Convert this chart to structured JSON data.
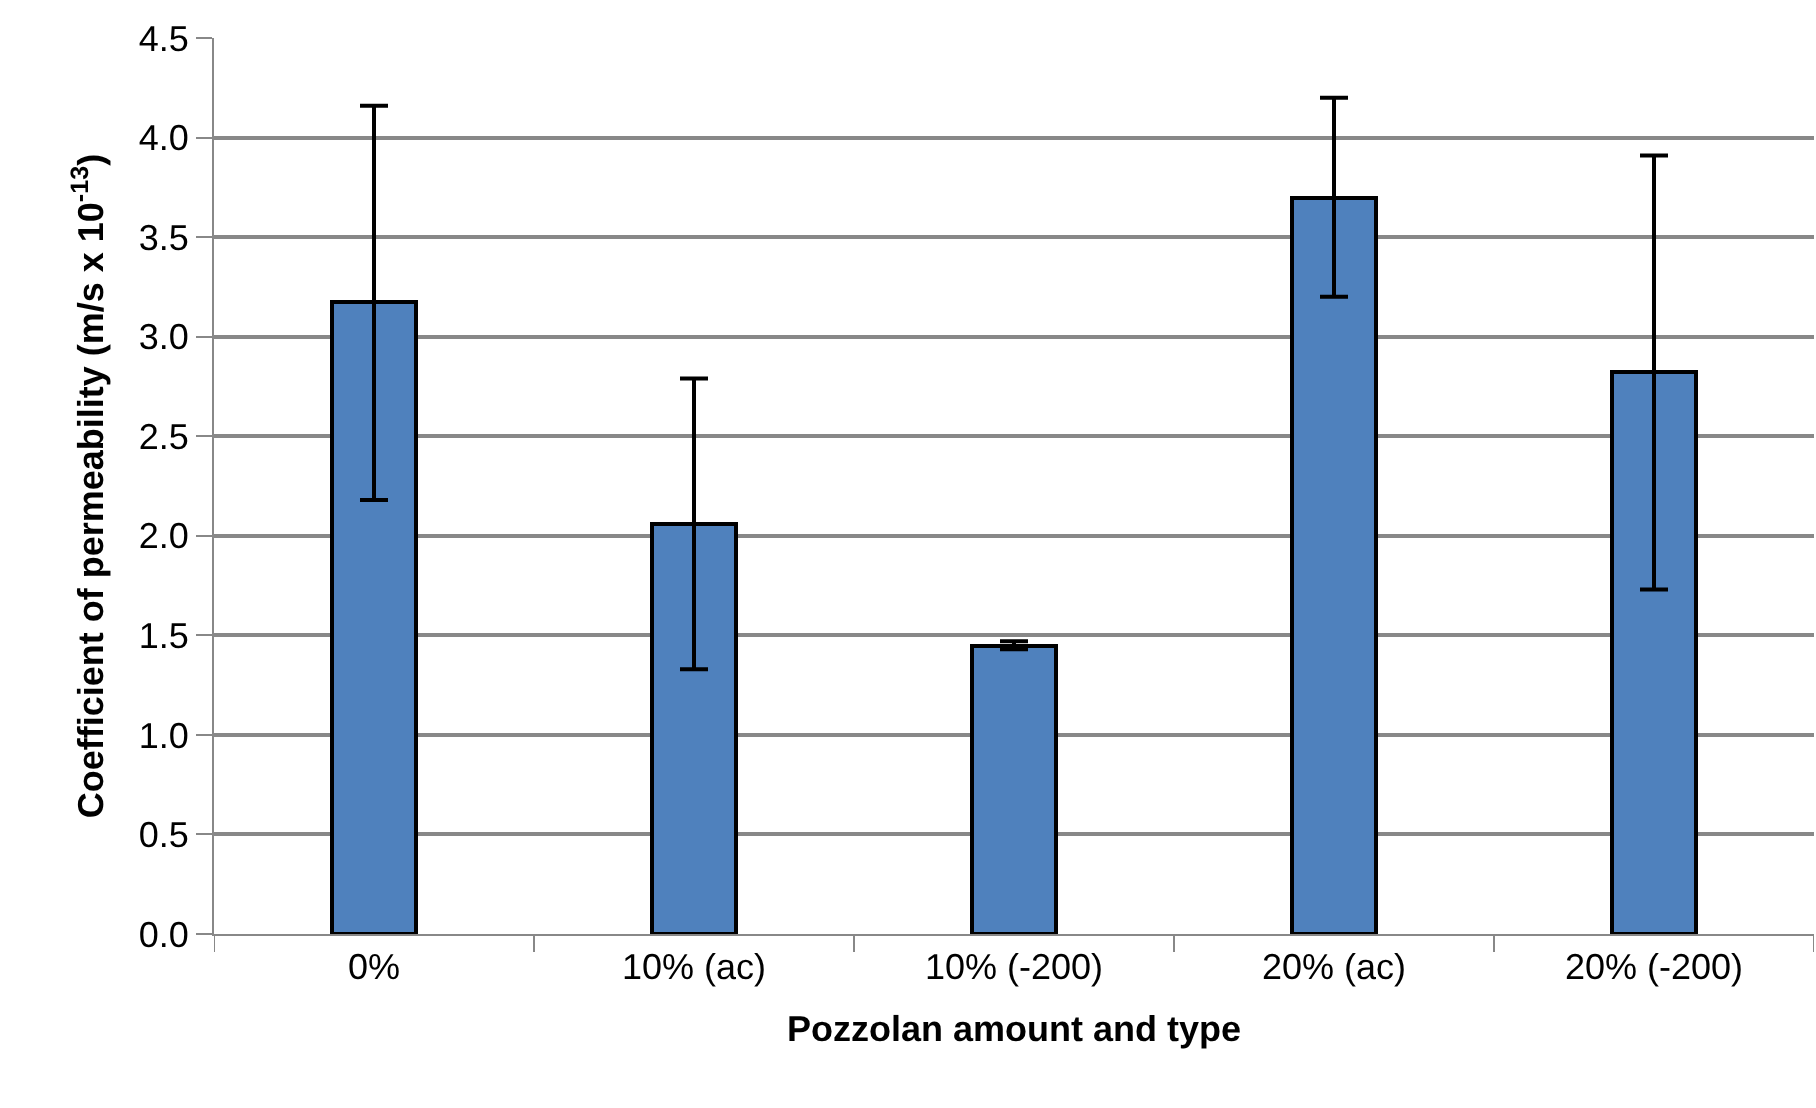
{
  "chart_data": {
    "type": "bar",
    "xlabel": "Pozzolan amount and type",
    "ylabel": "Coefficient of permeability (m/s x 10$^{-13}$)",
    "categories": [
      "0%",
      "10% (ac)",
      "10% (-200)",
      "20% (ac)",
      "20% (-200)"
    ],
    "values": [
      3.17,
      2.06,
      1.45,
      3.7,
      2.82
    ],
    "errors": [
      0.99,
      0.73,
      0.02,
      0.5,
      1.09
    ],
    "color": "#4f81bd",
    "ylim": [
      0,
      4.5
    ],
    "yticks": [
      {
        "value": 0,
        "label": "0.0"
      },
      0.5,
      {
        "value": 1,
        "label": "1.0"
      },
      1.5,
      {
        "value": 2,
        "label": "2.0"
      },
      2.5,
      {
        "value": 3,
        "label": "3.0"
      },
      3.5,
      {
        "value": 4,
        "label": "4.0"
      },
      4.5
    ],
    "grid": "y"
  }
}
